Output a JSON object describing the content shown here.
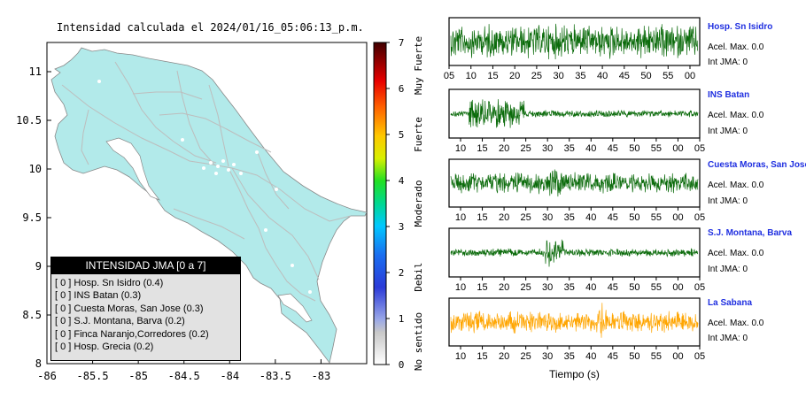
{
  "title": "Intensidad calculada el 2024/01/16_05:06:13_p.m.",
  "colors": {
    "land": "#b2eaea",
    "ocean": "#ffffff",
    "road": "#bdbdbd",
    "wave_green": "#0b6b0b",
    "wave_orange": "#ffa500",
    "station_name": "#1f2fe0"
  },
  "chart_data": [
    {
      "type": "map",
      "xticks": [
        "-86",
        "-85.5",
        "-85",
        "-84.5",
        "-84",
        "-83.5",
        "-83"
      ],
      "yticks": [
        "11",
        "10.5",
        "10",
        "9.5",
        "9",
        "8.5",
        "8"
      ],
      "xlim": [
        -86,
        -82.5
      ],
      "ylim": [
        8,
        11.3
      ]
    },
    {
      "type": "colorbar",
      "range": [
        0,
        7
      ],
      "ticks": [
        "0",
        "1",
        "2",
        "3",
        "4",
        "5",
        "6",
        "7"
      ],
      "category_labels": [
        "No sentido",
        "Debil",
        "Moderado",
        "Fuerte",
        "Muy Fuerte"
      ]
    },
    {
      "type": "line",
      "xlabel": "Tiempo (s)",
      "panels": [
        {
          "station": "Hosp. Sn Isidro",
          "acel": "Acel. Max. 0.0",
          "int": "Int JMA: 0",
          "color": "#0b6b0b",
          "xticks": [
            "05",
            "10",
            "15",
            "20",
            "25",
            "30",
            "35",
            "40",
            "45",
            "50",
            "55",
            "00"
          ],
          "amplitude": 0.8
        },
        {
          "station": "INS Batan",
          "acel": "Acel. Max. 0.0",
          "int": "Int JMA: 0",
          "color": "#0b6b0b",
          "xticks": [
            "10",
            "15",
            "20",
            "25",
            "30",
            "35",
            "40",
            "45",
            "50",
            "55",
            "00",
            "05"
          ],
          "amplitude": 0.45
        },
        {
          "station": "Cuesta Moras, San Jose",
          "acel": "Acel. Max. 0.0",
          "int": "Int JMA: 0",
          "color": "#0b6b0b",
          "xticks": [
            "10",
            "15",
            "20",
            "25",
            "30",
            "35",
            "40",
            "45",
            "50",
            "55",
            "00",
            "05"
          ],
          "amplitude": 0.6
        },
        {
          "station": "S.J. Montana, Barva",
          "acel": "Acel. Max. 0.0",
          "int": "Int JMA: 0",
          "color": "#0b6b0b",
          "xticks": [
            "10",
            "15",
            "20",
            "25",
            "30",
            "35",
            "40",
            "45",
            "50",
            "55",
            "00",
            "05"
          ],
          "amplitude": 0.3
        },
        {
          "station": "La Sabana",
          "acel": "Acel. Max. 0.0",
          "int": "Int JMA: 0",
          "color": "#ffa500",
          "xticks": [
            "10",
            "15",
            "20",
            "25",
            "30",
            "35",
            "40",
            "45",
            "50",
            "55",
            "00",
            "05"
          ],
          "amplitude": 0.55
        }
      ]
    }
  ],
  "legend": {
    "title": "INTENSIDAD JMA [0 a 7]",
    "items": [
      "[ 0 ]  Hosp. Sn Isidro (0.4)",
      "[ 0 ]  INS Batan (0.3)",
      "[ 0 ]  Cuesta Moras, San Jose (0.3)",
      "[ 0 ]  S.J. Montana, Barva (0.2)",
      "[ 0 ]  Finca Naranjo,Corredores (0.2)",
      "[ 0 ]  Hosp. Grecia (0.2)"
    ]
  }
}
